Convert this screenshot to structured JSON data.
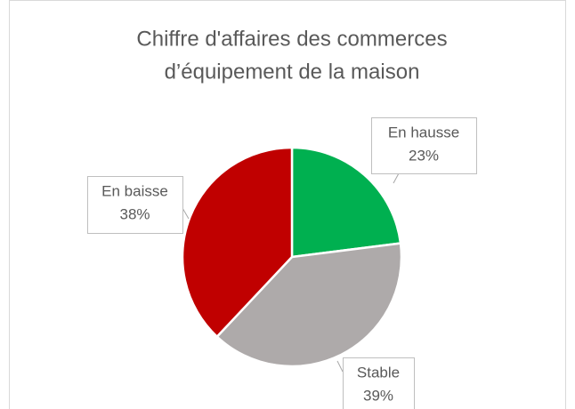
{
  "chart_data": {
    "type": "pie",
    "title": [
      "Chiffre d'affaires des commerces",
      "d’équipement de la maison"
    ],
    "categories": [
      "En hausse",
      "Stable",
      "En baisse"
    ],
    "values": [
      23,
      39,
      38
    ],
    "value_labels": [
      "23%",
      "39%",
      "38%"
    ],
    "colors": [
      "#00b050",
      "#aeaaaa",
      "#c00000"
    ]
  }
}
